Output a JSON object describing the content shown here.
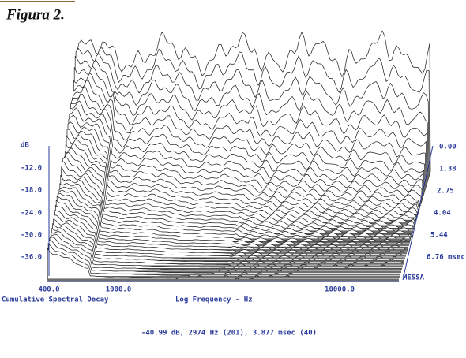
{
  "figure": {
    "caption": "Figura 2.",
    "left_labels": [
      "dB",
      "-12.0",
      "-18.0",
      "-24.0",
      "-30.0",
      "-36.0"
    ],
    "right_labels": [
      "0.00",
      "1.38",
      "2.75",
      "4.04",
      "5.44",
      "6.76 msec",
      "MESSA"
    ],
    "bottom_labels": [
      "400.0",
      "1000.0",
      "10000.0"
    ],
    "plot_name": "Cumulative Spectral Decay",
    "x_axis_label": "Log Frequency - Hz",
    "cursor_readout": "-40.99 dB, 2974 Hz (201), 3.877 msec (40)"
  }
}
